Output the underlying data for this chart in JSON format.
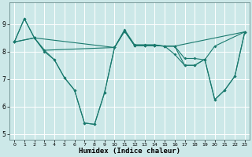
{
  "xlabel": "Humidex (Indice chaleur)",
  "bg_color": "#cce8e8",
  "grid_color": "#b8d8d8",
  "line_color": "#1a7a6e",
  "xlim": [
    -0.5,
    23.5
  ],
  "ylim": [
    4.8,
    9.8
  ],
  "xticks": [
    0,
    1,
    2,
    3,
    4,
    5,
    6,
    7,
    8,
    9,
    10,
    11,
    12,
    13,
    14,
    15,
    16,
    17,
    18,
    19,
    20,
    21,
    22,
    23
  ],
  "yticks": [
    5,
    6,
    7,
    8,
    9
  ],
  "line1_x": [
    0,
    1,
    2,
    3,
    4,
    5,
    6,
    7,
    8,
    9,
    10,
    11,
    12,
    13,
    14,
    15,
    16,
    17,
    18,
    19,
    20,
    21,
    22,
    23
  ],
  "line1_y": [
    8.35,
    9.2,
    8.5,
    8.0,
    7.7,
    7.05,
    6.6,
    5.4,
    5.35,
    6.5,
    8.15,
    8.8,
    8.25,
    8.25,
    8.25,
    8.2,
    7.9,
    7.5,
    7.5,
    7.72,
    6.25,
    6.6,
    7.1,
    8.72
  ],
  "line2_x": [
    0,
    2,
    3,
    10,
    11,
    12,
    13,
    14,
    15,
    16,
    17,
    18,
    19,
    20,
    23
  ],
  "line2_y": [
    8.35,
    8.5,
    8.05,
    8.15,
    8.75,
    8.22,
    8.22,
    8.22,
    8.2,
    8.2,
    7.75,
    7.75,
    7.7,
    8.2,
    8.72
  ],
  "line3_x": [
    0,
    1,
    2,
    10,
    11,
    12,
    13,
    14,
    15,
    16,
    23
  ],
  "line3_y": [
    8.35,
    9.2,
    8.5,
    8.15,
    8.75,
    8.22,
    8.22,
    8.22,
    8.2,
    8.2,
    8.72
  ],
  "line4_x": [
    0,
    2,
    3,
    4,
    5,
    6,
    7,
    8,
    9,
    10,
    11,
    12,
    13,
    14,
    15,
    16,
    17,
    18,
    19,
    20,
    21,
    22,
    23
  ],
  "line4_y": [
    8.35,
    8.5,
    8.05,
    7.7,
    7.05,
    6.6,
    5.4,
    5.35,
    6.5,
    8.15,
    8.75,
    8.22,
    8.22,
    8.22,
    8.2,
    8.2,
    7.5,
    7.5,
    7.72,
    6.25,
    6.6,
    7.1,
    8.72
  ]
}
